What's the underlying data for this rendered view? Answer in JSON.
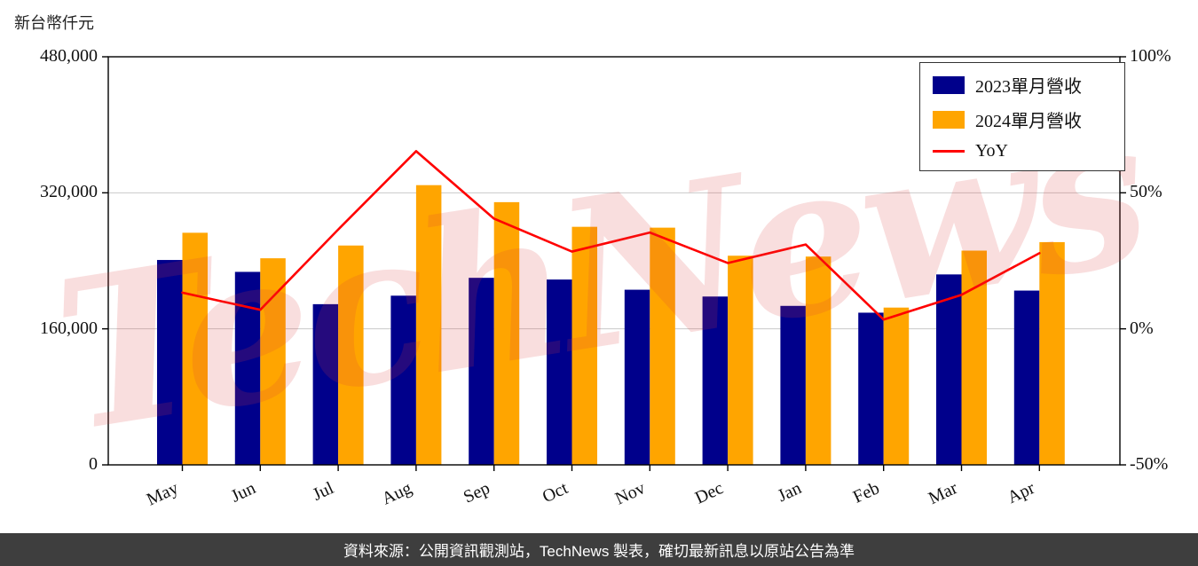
{
  "unit_label": "新台幣仟元",
  "watermark": "TechNews",
  "footer_text": "資料來源：公開資訊觀測站，TechNews 製表，確切最新訊息以原站公告為準",
  "legend": {
    "series1": "2023單月營收",
    "series2": "2024單月營收",
    "yoy": "YoY"
  },
  "colors": {
    "bar2023": "#00008B",
    "bar2024": "#FFA500",
    "yoy_line": "#FF0000",
    "grid": "#c9c9c9",
    "axis": "#000000",
    "footer_bg": "#3e3e3e",
    "watermark": "rgba(219,62,62,0.17)"
  },
  "chart_data": {
    "type": "bar",
    "subtype": "grouped bars with YoY line overlay",
    "title": "",
    "categories": [
      "May",
      "Jun",
      "Jul",
      "Aug",
      "Sep",
      "Oct",
      "Nov",
      "Dec",
      "Jan",
      "Feb",
      "Mar",
      "Apr"
    ],
    "series": [
      {
        "name": "2023單月營收",
        "type": "bar",
        "color": "#00008B",
        "values": [
          241000,
          227000,
          189000,
          199000,
          220000,
          218000,
          206000,
          198000,
          187000,
          179000,
          224000,
          205000
        ]
      },
      {
        "name": "2024單月營收",
        "type": "bar",
        "color": "#FFA500",
        "values": [
          273000,
          243000,
          258000,
          329000,
          309000,
          280000,
          279000,
          246000,
          245000,
          185000,
          252000,
          262000
        ]
      },
      {
        "name": "YoY",
        "type": "line",
        "color": "#FF0000",
        "axis": "right",
        "values": [
          13.3,
          7.0,
          36.5,
          65.3,
          40.5,
          28.4,
          35.4,
          24.2,
          31.0,
          3.4,
          12.5,
          27.8
        ]
      }
    ],
    "left_axis": {
      "label": "新台幣仟元",
      "range": [
        0,
        480000
      ],
      "ticks": [
        0,
        160000,
        320000,
        480000
      ],
      "tick_labels": [
        "0",
        "160,000",
        "320,000",
        "480,000"
      ]
    },
    "right_axis": {
      "unit": "%",
      "range": [
        -50,
        100
      ],
      "ticks_pct": [
        -50,
        0,
        50,
        100
      ],
      "tick_labels": [
        "-50%",
        "0%",
        "50%",
        "100%"
      ]
    },
    "grid": true,
    "legend_position": "top-right"
  }
}
